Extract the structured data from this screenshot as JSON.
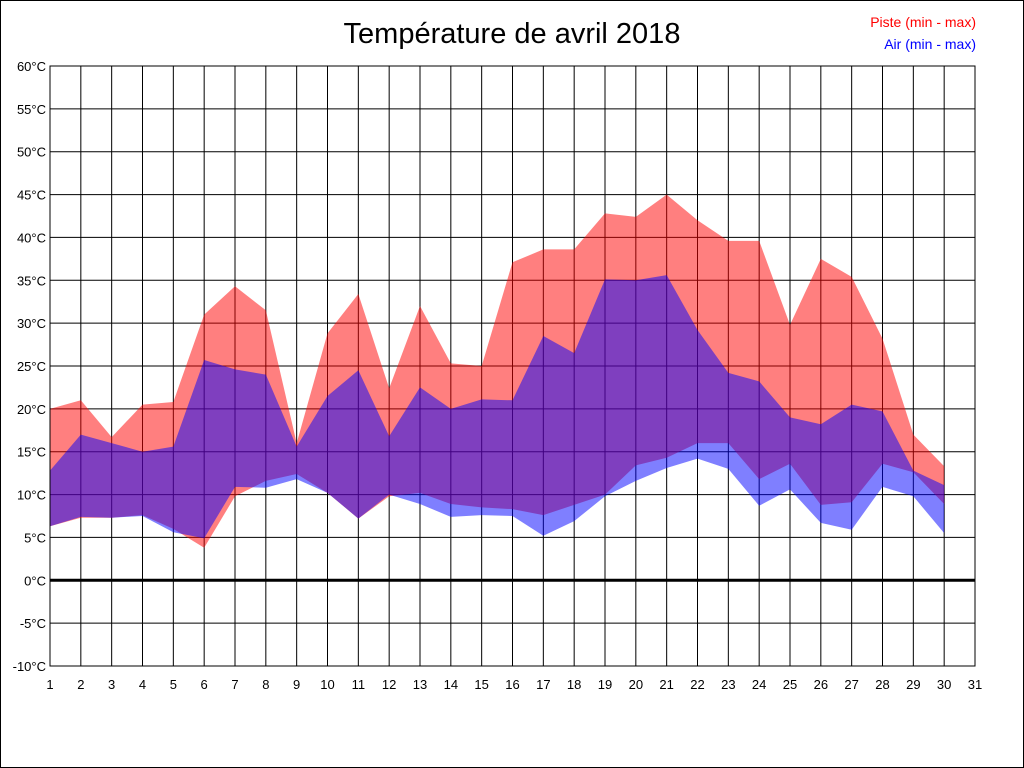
{
  "chart_data": {
    "type": "area",
    "title": "Température de avril 2018",
    "xlabel": "",
    "ylabel": "",
    "x_ticks": [
      1,
      2,
      3,
      4,
      5,
      6,
      7,
      8,
      9,
      10,
      11,
      12,
      13,
      14,
      15,
      16,
      17,
      18,
      19,
      20,
      21,
      22,
      23,
      24,
      25,
      26,
      27,
      28,
      29,
      30,
      31
    ],
    "y_ticks": [
      "-10°C",
      "-5°C",
      "0°C",
      "5°C",
      "10°C",
      "15°C",
      "20°C",
      "25°C",
      "30°C",
      "35°C",
      "40°C",
      "45°C",
      "50°C",
      "55°C",
      "60°C"
    ],
    "xlim": [
      1,
      31
    ],
    "ylim": [
      -10,
      60
    ],
    "grid": true,
    "legend_position": "top-right",
    "x": [
      1,
      2,
      3,
      4,
      5,
      6,
      7,
      8,
      9,
      10,
      11,
      12,
      13,
      14,
      15,
      16,
      17,
      18,
      19,
      20,
      21,
      22,
      23,
      24,
      25,
      26,
      27,
      28,
      29,
      30
    ],
    "series": [
      {
        "name": "Piste (min - max)",
        "color": "#ff0000",
        "min": [
          6.3,
          7.3,
          7.3,
          7.6,
          6.0,
          3.8,
          9.8,
          11.6,
          12.4,
          10.2,
          7.2,
          9.8,
          10.2,
          8.9,
          8.5,
          8.3,
          7.6,
          8.8,
          10.0,
          13.4,
          14.3,
          16.0,
          16.0,
          11.8,
          13.6,
          8.8,
          9.1,
          13.6,
          12.6,
          8.9
        ],
        "max": [
          20.0,
          21.0,
          16.7,
          20.5,
          20.8,
          31.0,
          34.3,
          31.5,
          16.0,
          28.8,
          33.4,
          22.4,
          32.0,
          25.3,
          25.0,
          37.1,
          38.6,
          38.6,
          42.8,
          42.4,
          45.0,
          42.0,
          39.6,
          39.6,
          29.8,
          37.5,
          35.4,
          28.2,
          17.0,
          13.3
        ]
      },
      {
        "name": "Air (min - max)",
        "color": "#0000ff",
        "min": [
          6.3,
          7.4,
          7.3,
          7.5,
          5.6,
          4.9,
          10.9,
          10.8,
          11.8,
          10.2,
          7.2,
          10.0,
          8.9,
          7.4,
          7.6,
          7.5,
          5.2,
          6.9,
          9.8,
          11.6,
          13.1,
          14.2,
          13.0,
          8.7,
          10.6,
          6.7,
          5.9,
          10.9,
          9.8,
          5.5
        ],
        "max": [
          12.8,
          17.0,
          16.0,
          15.0,
          15.6,
          25.7,
          24.6,
          24.0,
          15.6,
          21.5,
          24.5,
          16.8,
          22.5,
          20.0,
          21.1,
          21.0,
          28.5,
          26.5,
          35.1,
          35.0,
          35.6,
          29.2,
          24.2,
          23.2,
          19.0,
          18.2,
          20.5,
          19.7,
          12.8,
          11.1
        ]
      }
    ]
  }
}
